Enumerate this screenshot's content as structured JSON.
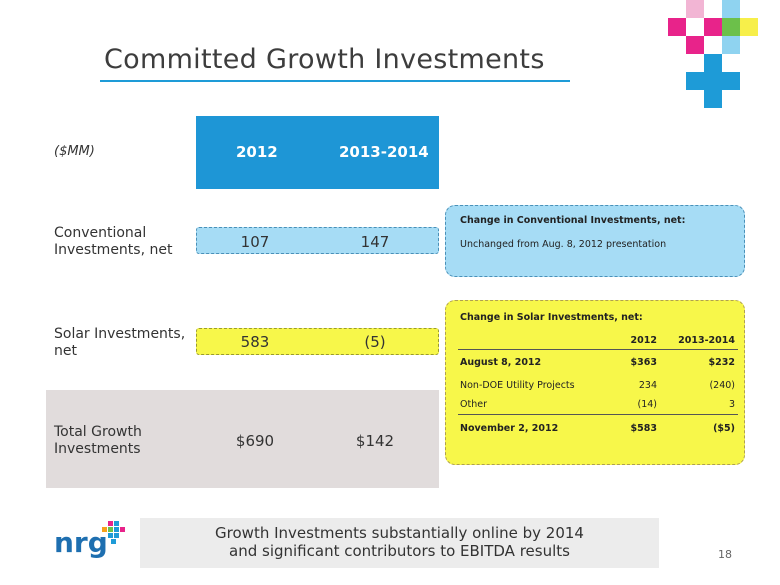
{
  "title": "Committed Growth Investments",
  "table": {
    "unit_label": "($MM)",
    "columns": [
      "2012",
      "2013-2014"
    ],
    "rows": [
      {
        "label_line1": "Conventional",
        "label_line2": "Investments, net",
        "v2012": "107",
        "v1314": "147"
      },
      {
        "label_line1": "Solar Investments,",
        "label_line2": "net",
        "v2012": "583",
        "v1314": "(5)"
      },
      {
        "label_line1": "Total Growth",
        "label_line2": "Investments",
        "v2012": "$690",
        "v1314": "$142"
      }
    ]
  },
  "conventional_callout": {
    "title": "Change in Conventional Investments, net:",
    "text": "Unchanged from Aug. 8, 2012 presentation"
  },
  "solar_callout": {
    "title": "Change in Solar Investments, net:",
    "col1": "2012",
    "col2": "2013-2014",
    "rows": [
      {
        "label": "August 8, 2012",
        "c1": "$363",
        "c2": "$232"
      },
      {
        "label": "Non-DOE Utility Projects",
        "c1": "234",
        "c2": "(240)"
      },
      {
        "label": "Other",
        "c1": "(14)",
        "c2": "3"
      },
      {
        "label": "November 2, 2012",
        "c1": "$583",
        "c2": "($5)"
      }
    ]
  },
  "footer": {
    "line1": "Growth Investments substantially online by 2014",
    "line2": "and significant contributors to EBITDA results"
  },
  "logo_text": "nrg",
  "page_number": "18",
  "colors": {
    "accent_blue": "#1e96d6",
    "light_blue": "#a6dcf5",
    "yellow": "#f7f74a",
    "gray": "#e1dcdc"
  }
}
